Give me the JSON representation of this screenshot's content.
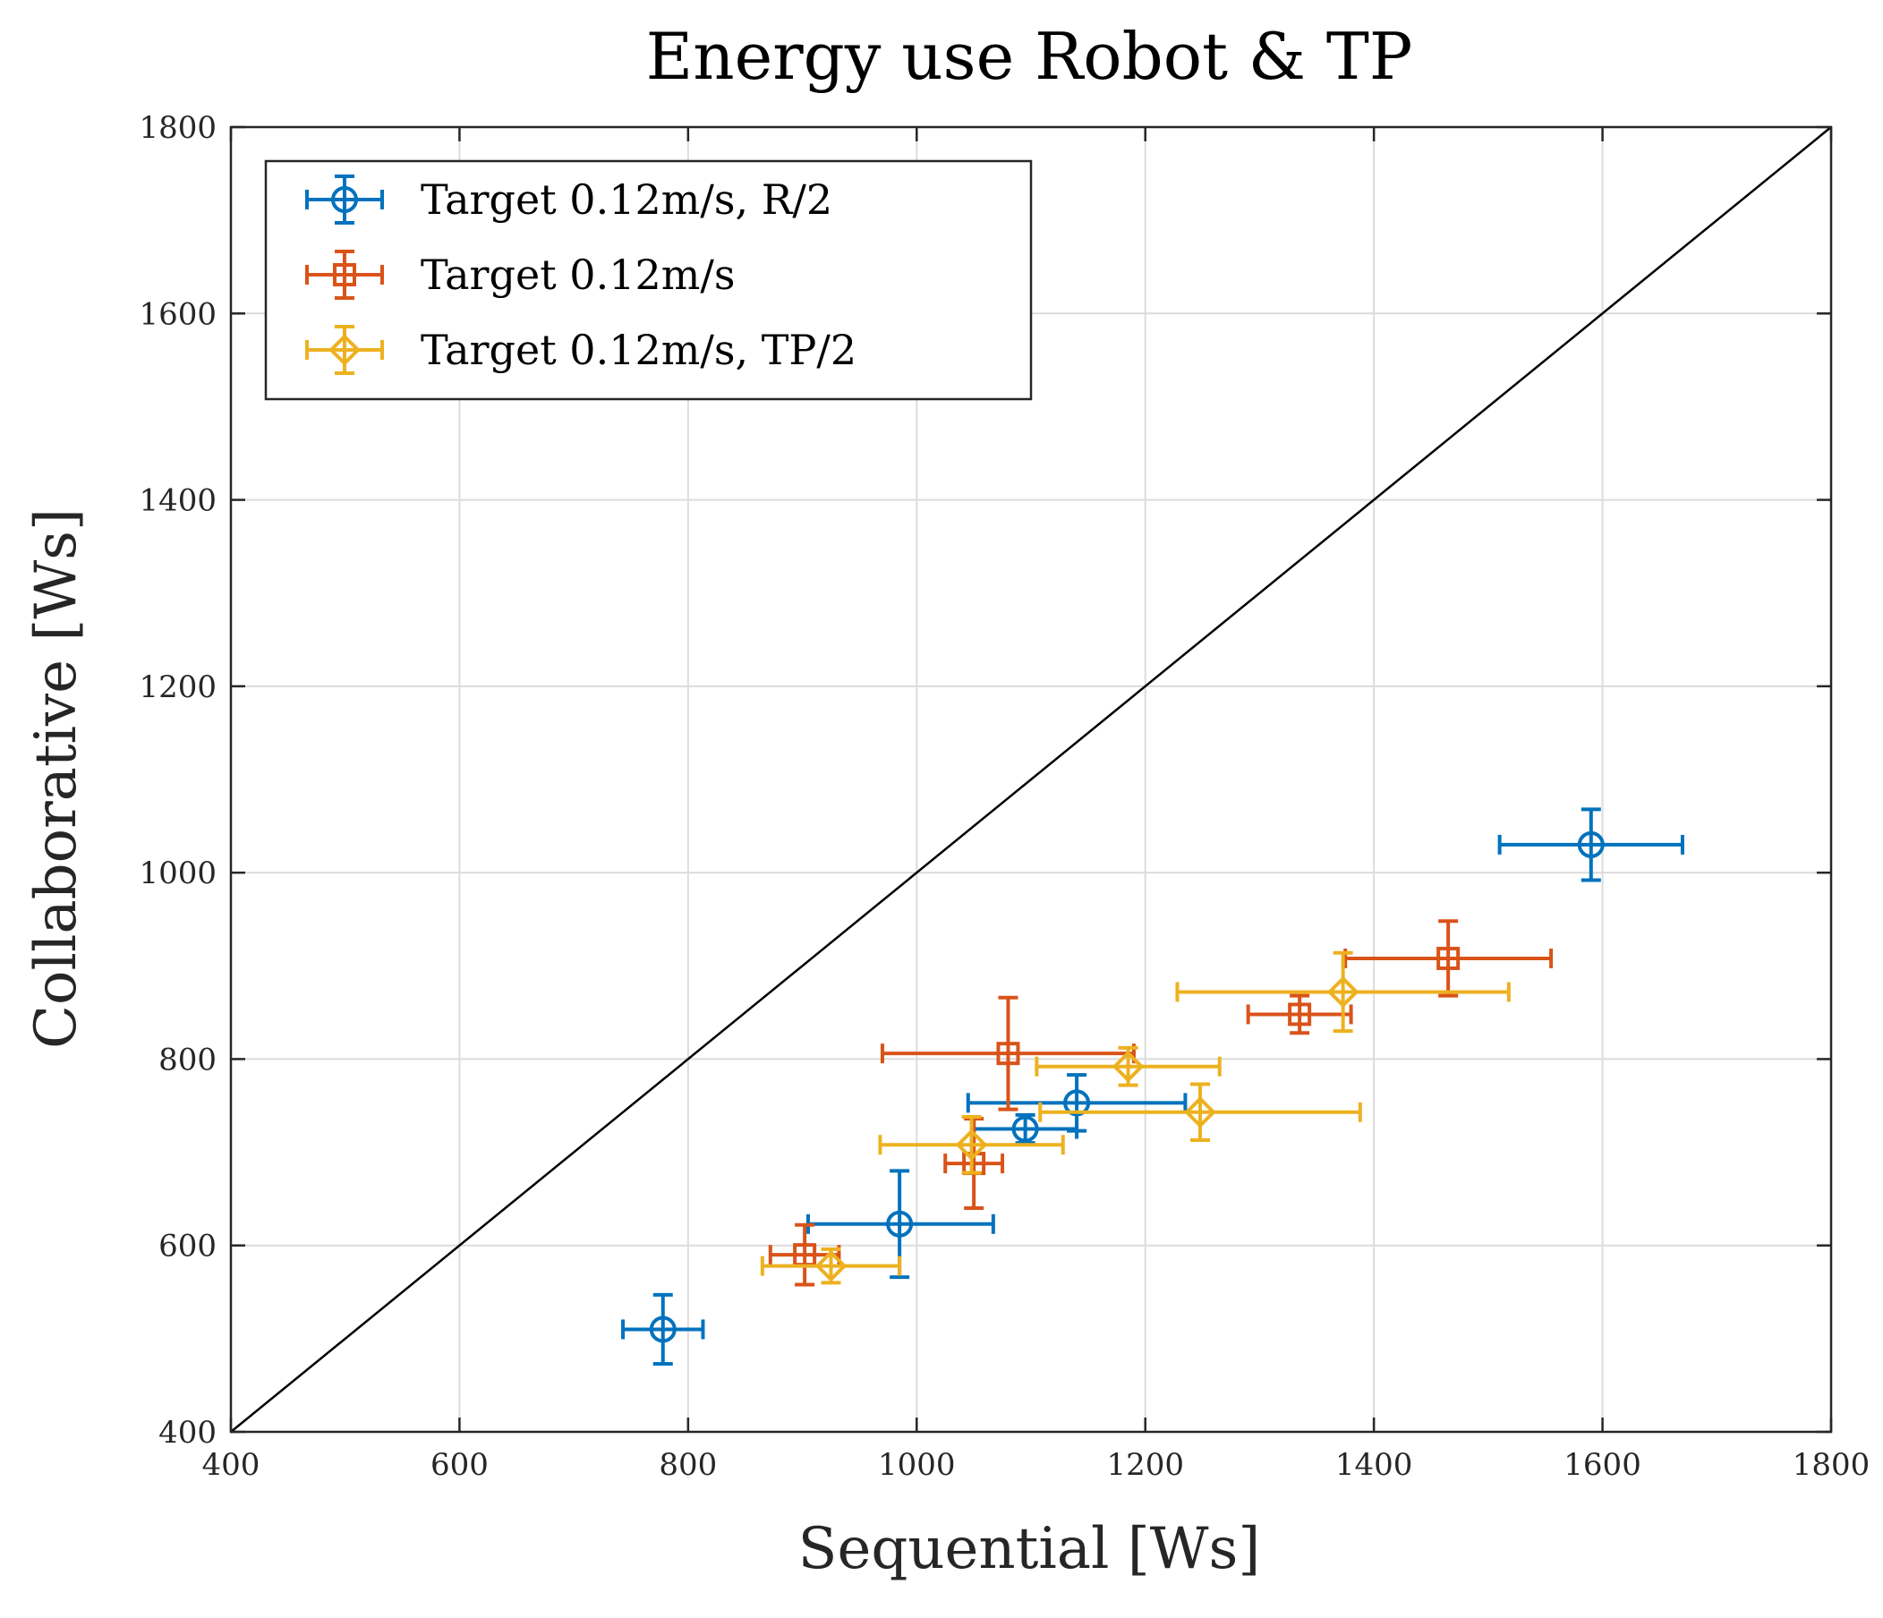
{
  "chart_data": {
    "type": "scatter",
    "title": "Energy use Robot & TP",
    "xlabel": "Sequential [Ws]",
    "ylabel": "Collaborative [Ws]",
    "xlim": [
      400,
      1800
    ],
    "ylim": [
      400,
      1800
    ],
    "xticks": [
      "400",
      "600",
      "800",
      "1000",
      "1200",
      "1400",
      "1600",
      "1800"
    ],
    "yticks": [
      "400",
      "600",
      "800",
      "1000",
      "1200",
      "1400",
      "1600",
      "1800"
    ],
    "grid": true,
    "legend_position": "top-left",
    "reference_line": {
      "from": [
        400,
        400
      ],
      "to": [
        1800,
        1800
      ],
      "color": "#000000"
    },
    "series": [
      {
        "name": "Target 0.12m/s, R/2",
        "marker": "circle",
        "color": "#0072BD",
        "points": [
          {
            "x": 778,
            "y": 510,
            "xneg": 35,
            "xpos": 35,
            "yneg": 37,
            "ypos": 37
          },
          {
            "x": 985,
            "y": 623,
            "xneg": 80,
            "xpos": 82,
            "yneg": 57,
            "ypos": 57
          },
          {
            "x": 1095,
            "y": 725,
            "xneg": 45,
            "xpos": 45,
            "yneg": 15,
            "ypos": 15
          },
          {
            "x": 1140,
            "y": 753,
            "xneg": 95,
            "xpos": 95,
            "yneg": 30,
            "ypos": 30
          },
          {
            "x": 1590,
            "y": 1030,
            "xneg": 80,
            "xpos": 80,
            "yneg": 38,
            "ypos": 38
          }
        ]
      },
      {
        "name": "Target 0.12m/s",
        "marker": "square",
        "color": "#D95319",
        "points": [
          {
            "x": 902,
            "y": 590,
            "xneg": 30,
            "xpos": 30,
            "yneg": 32,
            "ypos": 32
          },
          {
            "x": 1050,
            "y": 688,
            "xneg": 25,
            "xpos": 25,
            "yneg": 48,
            "ypos": 48
          },
          {
            "x": 1080,
            "y": 806,
            "xneg": 110,
            "xpos": 110,
            "yneg": 60,
            "ypos": 60
          },
          {
            "x": 1335,
            "y": 848,
            "xneg": 45,
            "xpos": 45,
            "yneg": 20,
            "ypos": 20
          },
          {
            "x": 1465,
            "y": 908,
            "xneg": 90,
            "xpos": 90,
            "yneg": 40,
            "ypos": 40
          }
        ]
      },
      {
        "name": "Target 0.12m/s, TP/2",
        "marker": "diamond",
        "color": "#EDB120",
        "points": [
          {
            "x": 925,
            "y": 578,
            "xneg": 60,
            "xpos": 60,
            "yneg": 18,
            "ypos": 18
          },
          {
            "x": 1048,
            "y": 708,
            "xneg": 80,
            "xpos": 80,
            "yneg": 30,
            "ypos": 30
          },
          {
            "x": 1185,
            "y": 792,
            "xneg": 80,
            "xpos": 80,
            "yneg": 20,
            "ypos": 20
          },
          {
            "x": 1248,
            "y": 743,
            "xneg": 140,
            "xpos": 140,
            "yneg": 30,
            "ypos": 30
          },
          {
            "x": 1373,
            "y": 872,
            "xneg": 145,
            "xpos": 145,
            "yneg": 42,
            "ypos": 42
          }
        ]
      }
    ]
  }
}
